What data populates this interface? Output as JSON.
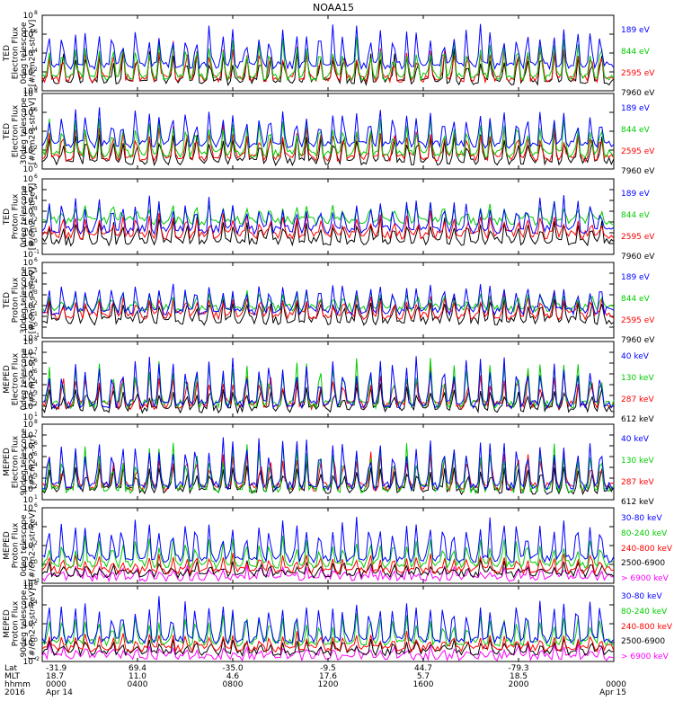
{
  "chart_data": {
    "type": "line",
    "title": "NOAA15",
    "x_range_hours": [
      0,
      24
    ],
    "grid": false,
    "legend_placement": "right",
    "panels": [
      {
        "ylabel_lines": [
          "TED",
          "Electron Flux",
          "0deg telescope",
          "[#/cm2-s-str-eV]"
        ],
        "y_exponents": [
          0,
          2,
          4,
          6,
          8
        ],
        "log_scale": true,
        "ylim_log10": [
          0,
          8
        ],
        "series": [
          {
            "name": "7960 eV",
            "color": "#000000",
            "base": 1.0,
            "amp": 3.6
          },
          {
            "name": "2595 eV",
            "color": "#ff0000",
            "base": 1.3,
            "amp": 3.7
          },
          {
            "name": "844 eV",
            "color": "#00cc00",
            "base": 1.5,
            "amp": 4.2
          },
          {
            "name": "189 eV",
            "color": "#0000ff",
            "base": 2.7,
            "amp": 4.3
          }
        ]
      },
      {
        "ylabel_lines": [
          "TED",
          "Electron Flux",
          "30deg telescope",
          "[#/cm2-s-str-eV]"
        ],
        "y_exponents": [
          0,
          2,
          4,
          6,
          8
        ],
        "log_scale": true,
        "ylim_log10": [
          0,
          8
        ],
        "series": [
          {
            "name": "7960 eV",
            "color": "#000000",
            "base": 0.8,
            "amp": 3.2
          },
          {
            "name": "2595 eV",
            "color": "#ff0000",
            "base": 1.2,
            "amp": 3.4
          },
          {
            "name": "844 eV",
            "color": "#00cc00",
            "base": 1.6,
            "amp": 3.9
          },
          {
            "name": "189 eV",
            "color": "#0000ff",
            "base": 2.6,
            "amp": 4.0
          }
        ]
      },
      {
        "ylabel_lines": [
          "TED",
          "Proton Flux",
          "0deg telescope",
          "[#/cm2-s-str-eV]"
        ],
        "y_exponents": [
          -1,
          0,
          1,
          2,
          3,
          4,
          5,
          6
        ],
        "log_scale": true,
        "ylim_log10": [
          -1,
          6
        ],
        "series": [
          {
            "name": "7960 eV",
            "color": "#000000",
            "base": 0.2,
            "amp": 2.3
          },
          {
            "name": "2595 eV",
            "color": "#ff0000",
            "base": 0.8,
            "amp": 2.0
          },
          {
            "name": "844 eV",
            "color": "#00cc00",
            "base": 2.1,
            "amp": 1.6
          },
          {
            "name": "189 eV",
            "color": "#0000ff",
            "base": 1.3,
            "amp": 3.0
          }
        ]
      },
      {
        "ylabel_lines": [
          "TED",
          "Proton Flux",
          "30deg telescope",
          "[#/cm2-s-str-eV]"
        ],
        "y_exponents": [
          -1,
          0,
          1,
          2,
          3,
          4,
          5,
          6
        ],
        "log_scale": true,
        "ylim_log10": [
          -1,
          6
        ],
        "series": [
          {
            "name": "7960 eV",
            "color": "#000000",
            "base": 0.6,
            "amp": 2.2
          },
          {
            "name": "2595 eV",
            "color": "#ff0000",
            "base": 1.1,
            "amp": 2.0
          },
          {
            "name": "844 eV",
            "color": "#00cc00",
            "base": 1.8,
            "amp": 1.6
          },
          {
            "name": "189 eV",
            "color": "#0000ff",
            "base": 1.5,
            "amp": 2.8
          }
        ]
      },
      {
        "ylabel_lines": [
          "MEPED",
          "Electron Flux",
          "0deg telescope",
          "[#/cm2-s-str]"
        ],
        "y_exponents": [
          1,
          2,
          3,
          4,
          5,
          6,
          7,
          8
        ],
        "log_scale": true,
        "ylim_log10": [
          1,
          8
        ],
        "series": [
          {
            "name": "612 keV",
            "color": "#000000",
            "base": 1.8,
            "amp": 2.2
          },
          {
            "name": "287 keV",
            "color": "#ff0000",
            "base": 2.1,
            "amp": 3.4
          },
          {
            "name": "130 keV",
            "color": "#00cc00",
            "base": 2.2,
            "amp": 4.2
          },
          {
            "name": "40 keV",
            "color": "#0000ff",
            "base": 2.2,
            "amp": 4.6
          }
        ]
      },
      {
        "ylabel_lines": [
          "MEPED",
          "Electron Flux",
          "90deg telescope",
          "[#/cm2-s-str]"
        ],
        "y_exponents": [
          1,
          2,
          3,
          4,
          5,
          6,
          7,
          8
        ],
        "log_scale": true,
        "ylim_log10": [
          1,
          8
        ],
        "series": [
          {
            "name": "612 keV",
            "color": "#000000",
            "base": 1.9,
            "amp": 2.5
          },
          {
            "name": "287 keV",
            "color": "#ff0000",
            "base": 2.2,
            "amp": 3.5
          },
          {
            "name": "130 keV",
            "color": "#00cc00",
            "base": 2.0,
            "amp": 4.5
          },
          {
            "name": "40 keV",
            "color": "#0000ff",
            "base": 2.3,
            "amp": 4.8
          }
        ]
      },
      {
        "ylabel_lines": [
          "MEPED",
          "Proton Flux",
          "0deg telescope",
          "[#/cm2-s-str-keV]"
        ],
        "y_exponents": [
          -2,
          0,
          2,
          4,
          6
        ],
        "log_scale": true,
        "ylim_log10": [
          -2,
          6
        ],
        "series": [
          {
            "name": "> 6900 keV",
            "color": "#ff00ff",
            "base": -1.4,
            "amp": 1.2
          },
          {
            "name": "2500-6900",
            "color": "#000000",
            "base": -1.0,
            "amp": 1.3
          },
          {
            "name": "240-800 keV",
            "color": "#ff0000",
            "base": -0.6,
            "amp": 1.6
          },
          {
            "name": "80-240 keV",
            "color": "#00cc00",
            "base": 0.0,
            "amp": 3.0
          },
          {
            "name": "30-80 keV",
            "color": "#0000ff",
            "base": 0.6,
            "amp": 4.4
          }
        ]
      },
      {
        "ylabel_lines": [
          "MEPED",
          "Proton Flux",
          "90deg telescope",
          "[#/cm2-s-str-keV]"
        ],
        "y_exponents": [
          -2,
          0,
          2,
          4,
          6
        ],
        "log_scale": true,
        "ylim_log10": [
          -2,
          6
        ],
        "series": [
          {
            "name": "> 6900 keV",
            "color": "#ff00ff",
            "base": -1.5,
            "amp": 1.2
          },
          {
            "name": "2500-6900",
            "color": "#000000",
            "base": -1.0,
            "amp": 1.4
          },
          {
            "name": "240-800 keV",
            "color": "#ff0000",
            "base": -0.6,
            "amp": 1.6
          },
          {
            "name": "80-240 keV",
            "color": "#00cc00",
            "base": 0.0,
            "amp": 3.2
          },
          {
            "name": "30-80 keV",
            "color": "#0000ff",
            "base": 0.3,
            "amp": 4.5
          }
        ]
      }
    ],
    "x_axis": {
      "row_labels": [
        "Lat",
        "MLT",
        "hhmm",
        "2016"
      ],
      "ticks": [
        {
          "hour": 0,
          "lat": "-31.9",
          "mlt": "18.7",
          "hhmm": "0000",
          "date": "Apr 14"
        },
        {
          "hour": 4,
          "lat": "69.4",
          "mlt": "11.0",
          "hhmm": "0400",
          "date": ""
        },
        {
          "hour": 8,
          "lat": "-35.0",
          "mlt": "4.6",
          "hhmm": "0800",
          "date": ""
        },
        {
          "hour": 12,
          "lat": "-9.5",
          "mlt": "17.6",
          "hhmm": "1200",
          "date": ""
        },
        {
          "hour": 16,
          "lat": "44.7",
          "mlt": "5.7",
          "hhmm": "1600",
          "date": ""
        },
        {
          "hour": 20,
          "lat": "-79.3",
          "mlt": "18.5",
          "hhmm": "2000",
          "date": ""
        },
        {
          "hour": 24,
          "lat": "",
          "mlt": "",
          "hhmm": "0000",
          "date": "Apr 15"
        }
      ]
    }
  }
}
